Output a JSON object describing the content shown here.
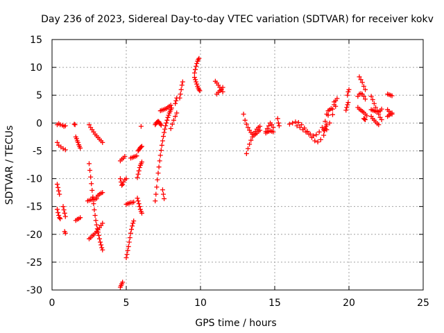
{
  "chart_data": {
    "type": "scatter",
    "title": "Day 236 of 2023, Sidereal Day-to-day VTEC variation (SDTVAR) for receiver kokv",
    "xlabel": "GPS time / hours",
    "ylabel": "SDTVAR / TECUs",
    "xlim": [
      0,
      25
    ],
    "ylim": [
      -30,
      15
    ],
    "xticks": [
      0,
      5,
      10,
      15,
      20,
      25
    ],
    "yticks": [
      -30,
      -25,
      -20,
      -15,
      -10,
      -5,
      0,
      5,
      10,
      15
    ],
    "grid": true,
    "marker": "+",
    "color": "#ff0000",
    "segments": [
      {
        "x": [
          0.35,
          0.45,
          0.55,
          0.7,
          0.8,
          0.9
        ],
        "y": [
          -0.3,
          -0.1,
          -0.3,
          -0.4,
          -0.6,
          -0.5
        ]
      },
      {
        "x": [
          0.35,
          0.45,
          0.6,
          0.75,
          0.9
        ],
        "y": [
          -3.5,
          -4.0,
          -4.3,
          -4.6,
          -4.8
        ]
      },
      {
        "x": [
          0.35,
          0.4,
          0.45,
          0.5
        ],
        "y": [
          -11.0,
          -11.6,
          -12.2,
          -12.8
        ]
      },
      {
        "x": [
          0.35,
          0.4,
          0.45,
          0.5,
          0.55
        ],
        "y": [
          -15.5,
          -16.1,
          -16.6,
          -17.0,
          -17.2
        ]
      },
      {
        "x": [
          0.75,
          0.8,
          0.85,
          0.9
        ],
        "y": [
          -15.0,
          -15.6,
          -16.2,
          -16.8
        ]
      },
      {
        "x": [
          0.85,
          0.9
        ],
        "y": [
          -19.5,
          -19.8
        ]
      },
      {
        "x": [
          1.6,
          1.65,
          1.7,
          1.75,
          1.8,
          1.85,
          1.9
        ],
        "y": [
          -2.5,
          -2.8,
          -3.2,
          -3.5,
          -3.9,
          -4.2,
          -4.5
        ]
      },
      {
        "x": [
          1.6,
          1.7,
          1.8,
          1.9
        ],
        "y": [
          -17.5,
          -17.3,
          -17.2,
          -17.0
        ]
      },
      {
        "x": [
          1.5,
          1.55
        ],
        "y": [
          -0.2,
          -0.3
        ]
      },
      {
        "x": [
          2.5,
          2.6,
          2.7,
          2.8,
          2.9,
          3.0,
          3.1,
          3.2,
          3.3,
          3.4
        ],
        "y": [
          -0.3,
          -0.8,
          -1.2,
          -1.6,
          -2.0,
          -2.3,
          -2.6,
          -2.9,
          -3.2,
          -3.5
        ]
      },
      {
        "x": [
          2.5,
          2.55,
          2.6,
          2.65,
          2.7,
          2.75,
          2.8,
          2.85,
          2.9,
          2.95,
          3.0,
          3.05,
          3.1,
          3.15,
          3.2,
          3.25,
          3.3,
          3.35,
          3.4
        ],
        "y": [
          -7.3,
          -8.5,
          -9.7,
          -10.9,
          -12.1,
          -13.3,
          -14.5,
          -15.6,
          -16.6,
          -17.5,
          -18.3,
          -19.0,
          -19.6,
          -20.2,
          -20.8,
          -21.4,
          -21.9,
          -22.4,
          -22.8
        ]
      },
      {
        "x": [
          2.4,
          2.5,
          2.6,
          2.7,
          2.8,
          2.9,
          3.0
        ],
        "y": [
          -14.0,
          -13.9,
          -13.8,
          -13.8,
          -13.7,
          -13.7,
          -13.6
        ]
      },
      {
        "x": [
          3.0,
          3.1,
          3.2,
          3.3,
          3.4
        ],
        "y": [
          -13.3,
          -13.0,
          -12.8,
          -12.6,
          -12.5
        ]
      },
      {
        "x": [
          2.5,
          2.6,
          2.7,
          2.8,
          2.9,
          3.0,
          3.1,
          3.2,
          3.3,
          3.4
        ],
        "y": [
          -20.8,
          -20.6,
          -20.3,
          -20.1,
          -19.8,
          -19.5,
          -19.2,
          -18.8,
          -18.4,
          -18.0
        ]
      },
      {
        "x": [
          4.6,
          4.65,
          4.7,
          4.75,
          4.8,
          4.9,
          5.0
        ],
        "y": [
          -10.0,
          -10.6,
          -11.2,
          -11.0,
          -10.6,
          -10.2,
          -10.0
        ]
      },
      {
        "x": [
          4.6,
          4.7,
          4.8,
          4.9
        ],
        "y": [
          -6.8,
          -6.5,
          -6.3,
          -6.0
        ]
      },
      {
        "x": [
          4.6,
          4.65,
          4.7,
          4.75
        ],
        "y": [
          -29.5,
          -29.2,
          -28.9,
          -28.6
        ]
      },
      {
        "x": [
          5.0,
          5.05,
          5.1,
          5.15,
          5.2,
          5.25,
          5.3,
          5.35,
          5.4,
          5.45,
          5.5
        ],
        "y": [
          -24.2,
          -23.6,
          -22.9,
          -22.2,
          -21.4,
          -20.6,
          -19.8,
          -19.1,
          -18.5,
          -18.0,
          -17.6
        ]
      },
      {
        "x": [
          5.3,
          5.4,
          5.5,
          5.6,
          5.7
        ],
        "y": [
          -6.3,
          -6.2,
          -6.1,
          -6.0,
          -5.9
        ]
      },
      {
        "x": [
          5.0,
          5.1,
          5.2,
          5.3,
          5.4,
          5.5
        ],
        "y": [
          -14.6,
          -14.5,
          -14.4,
          -14.3,
          -14.3,
          -14.2
        ]
      },
      {
        "x": [
          5.75,
          5.8,
          5.85,
          5.9,
          5.95,
          6.0,
          6.05
        ],
        "y": [
          -13.5,
          -14.0,
          -14.5,
          -15.0,
          -15.5,
          -15.9,
          -16.2
        ]
      },
      {
        "x": [
          5.75,
          5.8,
          5.85,
          5.9,
          5.95,
          6.0,
          6.05
        ],
        "y": [
          -9.8,
          -9.2,
          -8.6,
          -8.0,
          -7.6,
          -7.3,
          -7.0
        ]
      },
      {
        "x": [
          5.8,
          5.85,
          5.9,
          5.95,
          6.0,
          6.05
        ],
        "y": [
          -5.0,
          -4.8,
          -4.6,
          -4.4,
          -4.3,
          -4.2
        ]
      },
      {
        "x": [
          6.0
        ],
        "y": [
          -0.6
        ]
      },
      {
        "x": [
          6.95,
          7.0,
          7.05,
          7.1,
          7.15,
          7.2,
          7.25,
          7.3,
          7.35,
          7.4,
          7.45,
          7.5,
          7.55,
          7.6,
          7.65,
          7.7,
          7.75,
          7.8,
          7.85,
          7.9,
          7.95,
          8.0,
          8.05
        ],
        "y": [
          -14.0,
          -12.8,
          -11.5,
          -10.2,
          -9.0,
          -7.9,
          -6.8,
          -5.8,
          -4.9,
          -4.0,
          -3.2,
          -2.4,
          -1.7,
          -1.1,
          -0.5,
          0.0,
          0.5,
          1.0,
          1.4,
          1.8,
          2.1,
          2.4,
          2.7
        ]
      },
      {
        "x": [
          6.95,
          7.0,
          7.05,
          7.1,
          7.15,
          7.2,
          7.25,
          7.3,
          7.35
        ],
        "y": [
          -0.3,
          -0.1,
          0.1,
          0.2,
          0.3,
          0.2,
          0.0,
          -0.2,
          -0.4
        ]
      },
      {
        "x": [
          7.3,
          7.4,
          7.5,
          7.6,
          7.7,
          7.8,
          7.9,
          8.0
        ],
        "y": [
          2.2,
          2.3,
          2.4,
          2.5,
          2.6,
          2.8,
          3.0,
          3.2
        ]
      },
      {
        "x": [
          7.45,
          7.5,
          7.55
        ],
        "y": [
          -12.0,
          -12.8,
          -13.6
        ]
      },
      {
        "x": [
          8.0,
          8.1,
          8.2,
          8.3,
          8.4
        ],
        "y": [
          -1.0,
          -0.2,
          0.5,
          1.2,
          1.8
        ]
      },
      {
        "x": [
          8.3,
          8.35,
          8.4
        ],
        "y": [
          3.5,
          4.0,
          4.5
        ]
      },
      {
        "x": [
          8.6,
          8.65,
          8.7,
          8.75,
          8.8
        ],
        "y": [
          4.5,
          5.2,
          6.0,
          6.8,
          7.4
        ]
      },
      {
        "x": [
          9.6,
          9.65,
          9.7,
          9.75,
          9.8,
          9.85,
          9.9
        ],
        "y": [
          9.0,
          9.6,
          10.2,
          10.7,
          11.1,
          11.4,
          11.6
        ]
      },
      {
        "x": [
          9.6,
          9.65,
          9.7,
          9.75,
          9.8,
          9.85,
          9.9,
          9.95
        ],
        "y": [
          8.2,
          7.8,
          7.4,
          7.0,
          6.6,
          6.3,
          6.0,
          5.8
        ]
      },
      {
        "x": [
          11.0,
          11.1,
          11.2,
          11.3,
          11.4,
          11.5
        ],
        "y": [
          7.5,
          7.2,
          6.8,
          6.4,
          6.0,
          5.6
        ]
      },
      {
        "x": [
          11.1,
          11.2,
          11.3,
          11.4,
          11.5
        ],
        "y": [
          5.2,
          5.5,
          5.8,
          6.1,
          6.4
        ]
      },
      {
        "x": [
          12.9,
          13.0,
          13.1,
          13.2,
          13.3,
          13.4,
          13.5,
          13.6,
          13.7,
          13.8,
          13.9,
          14.0
        ],
        "y": [
          1.6,
          0.5,
          -0.2,
          -0.8,
          -1.3,
          -1.7,
          -2.0,
          -2.2,
          -2.0,
          -1.8,
          -1.5,
          -1.3
        ]
      },
      {
        "x": [
          13.1,
          13.2,
          13.3,
          13.4,
          13.5,
          13.6,
          13.7,
          13.8,
          13.9,
          14.0
        ],
        "y": [
          -5.5,
          -4.6,
          -3.8,
          -3.1,
          -2.5,
          -2.0,
          -1.5,
          -1.1,
          -0.8,
          -0.6
        ]
      },
      {
        "x": [
          14.4,
          14.5,
          14.6,
          14.7,
          14.8,
          14.9
        ],
        "y": [
          -1.5,
          -1.0,
          -0.5,
          0.0,
          -0.3,
          -0.8
        ]
      },
      {
        "x": [
          14.4,
          14.5,
          14.6,
          14.7,
          14.8,
          14.9
        ],
        "y": [
          -1.8,
          -1.6,
          -1.5,
          -1.4,
          -1.5,
          -1.6
        ]
      },
      {
        "x": [
          15.2,
          15.25,
          15.3
        ],
        "y": [
          0.8,
          0.0,
          -0.5
        ]
      },
      {
        "x": [
          16.0,
          16.2,
          16.4,
          16.6,
          16.8,
          17.0,
          17.2,
          17.4,
          17.6,
          17.8,
          18.0,
          18.2,
          18.4,
          18.6,
          18.8,
          19.0
        ],
        "y": [
          -0.2,
          0.0,
          0.2,
          0.1,
          -0.3,
          -0.9,
          -1.5,
          -2.0,
          -2.3,
          -2.1,
          -1.6,
          -0.8,
          0.3,
          1.4,
          2.6,
          3.8
        ]
      },
      {
        "x": [
          16.5,
          16.7,
          16.9,
          17.1,
          17.3,
          17.5,
          17.7,
          17.9,
          18.1,
          18.3,
          18.5,
          18.7,
          18.9,
          19.1
        ],
        "y": [
          -0.5,
          -0.8,
          -1.2,
          -1.6,
          -2.0,
          -2.6,
          -3.2,
          -3.4,
          -3.0,
          -2.2,
          -1.2,
          0.0,
          1.5,
          3.0
        ]
      },
      {
        "x": [
          18.3,
          18.35,
          18.4,
          18.45,
          18.5
        ],
        "y": [
          -1.2,
          -1.4,
          -1.0,
          -0.6,
          -0.3
        ]
      },
      {
        "x": [
          18.5,
          18.6,
          18.7
        ],
        "y": [
          1.6,
          2.2,
          2.4
        ]
      },
      {
        "x": [
          18.9,
          19.0,
          19.1,
          19.2
        ],
        "y": [
          2.5,
          3.3,
          4.0,
          4.4
        ]
      },
      {
        "x": [
          19.8,
          19.85,
          19.9,
          19.95
        ],
        "y": [
          2.3,
          2.8,
          3.3,
          3.7
        ]
      },
      {
        "x": [
          19.9,
          19.95,
          20.0
        ],
        "y": [
          5.0,
          5.6,
          6.0
        ]
      },
      {
        "x": [
          20.7,
          20.8,
          20.9,
          21.0,
          21.1
        ],
        "y": [
          8.3,
          7.8,
          7.3,
          6.6,
          6.0
        ]
      },
      {
        "x": [
          20.6,
          20.7,
          20.8,
          20.9,
          21.0,
          21.1
        ],
        "y": [
          4.8,
          5.2,
          5.3,
          5.2,
          4.8,
          4.3
        ]
      },
      {
        "x": [
          20.6,
          20.7,
          20.8,
          20.9,
          21.0,
          21.1,
          21.2
        ],
        "y": [
          2.8,
          2.5,
          2.3,
          2.1,
          1.9,
          1.6,
          1.3
        ]
      },
      {
        "x": [
          21.0,
          21.05,
          21.1
        ],
        "y": [
          0.8,
          0.7,
          0.6
        ]
      },
      {
        "x": [
          21.5,
          21.6,
          21.7,
          21.8,
          21.9,
          22.0,
          22.1,
          22.2
        ],
        "y": [
          4.8,
          4.2,
          3.5,
          2.8,
          2.2,
          1.6,
          1.0,
          0.6
        ]
      },
      {
        "x": [
          21.5,
          21.6,
          21.7,
          21.8,
          21.9,
          22.0,
          22.1,
          22.2
        ],
        "y": [
          2.4,
          2.3,
          2.2,
          2.1,
          2.0,
          2.0,
          2.2,
          2.5
        ]
      },
      {
        "x": [
          21.5,
          21.6,
          21.7,
          21.8,
          21.9,
          22.0
        ],
        "y": [
          1.2,
          0.8,
          0.5,
          0.2,
          -0.1,
          -0.3
        ]
      },
      {
        "x": [
          22.6,
          22.7,
          22.8,
          22.9
        ],
        "y": [
          5.2,
          5.1,
          5.0,
          4.9
        ]
      },
      {
        "x": [
          22.6,
          22.7,
          22.8,
          22.9
        ],
        "y": [
          2.4,
          2.1,
          1.8,
          1.6
        ]
      },
      {
        "x": [
          22.6,
          22.7,
          22.8,
          22.9
        ],
        "y": [
          1.2,
          1.4,
          1.6,
          1.8
        ]
      }
    ]
  }
}
